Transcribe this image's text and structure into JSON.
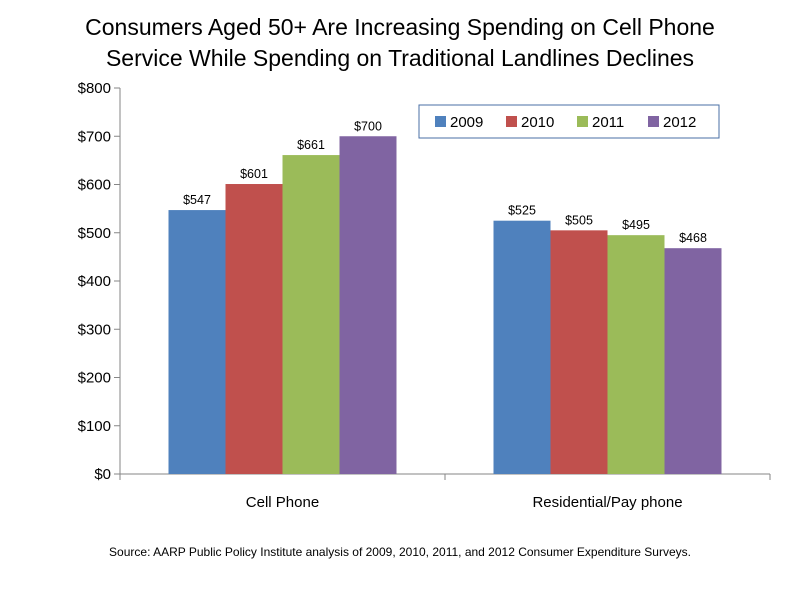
{
  "chart_data": {
    "type": "bar",
    "title_lines": [
      "Consumers Aged 50+ Are Increasing Spending on Cell Phone",
      "Service While Spending on Traditional Landlines Declines"
    ],
    "categories": [
      "Cell Phone",
      "Residential/Pay phone"
    ],
    "series": [
      {
        "name": "2009",
        "color": "#4F81BD",
        "values": [
          547,
          525
        ],
        "labels": [
          "$547",
          "$525"
        ]
      },
      {
        "name": "2010",
        "color": "#C0504D",
        "values": [
          601,
          505
        ],
        "labels": [
          "$601",
          "$505"
        ]
      },
      {
        "name": "2011",
        "color": "#9BBB59",
        "values": [
          661,
          495
        ],
        "labels": [
          "$661",
          "$495"
        ]
      },
      {
        "name": "2012",
        "color": "#8064A2",
        "values": [
          700,
          468
        ],
        "labels": [
          "$700",
          "$468"
        ]
      }
    ],
    "yticks": [
      0,
      100,
      200,
      300,
      400,
      500,
      600,
      700,
      800
    ],
    "ytick_labels": [
      "$0",
      "$100",
      "$200",
      "$300",
      "$400",
      "$500",
      "$600",
      "$700",
      "$800"
    ],
    "ylim": [
      0,
      800
    ],
    "xlabel": "",
    "ylabel": "",
    "legend_position": "top-right",
    "source": "Source:  AARP Public Policy Institute analysis of 2009, 2010, 2011, and 2012 Consumer Expenditure Surveys."
  }
}
